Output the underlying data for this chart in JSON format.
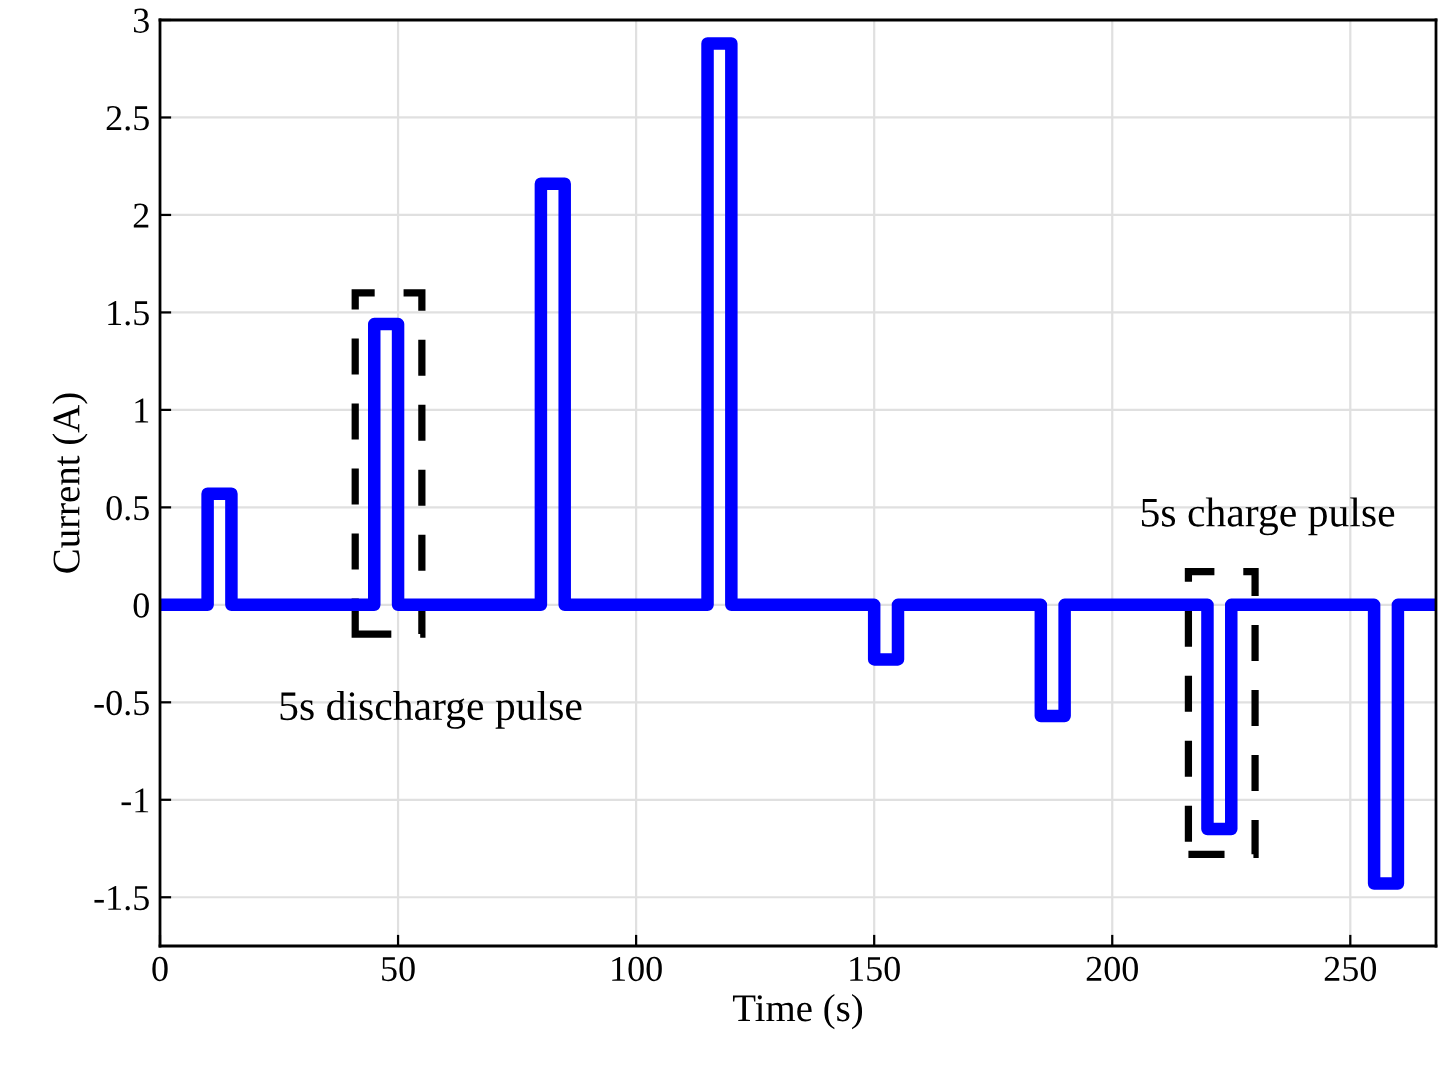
{
  "chart_data": {
    "type": "step",
    "xlabel": "Time (s)",
    "ylabel": "Current (A)",
    "x": [
      0,
      10,
      15,
      45,
      50,
      80,
      85,
      115,
      120,
      150,
      155,
      185,
      190,
      220,
      225,
      255,
      260,
      268
    ],
    "series": [
      {
        "color": "#0000ff",
        "values": [
          0,
          0.57,
          0,
          1.44,
          0,
          2.16,
          0,
          2.88,
          0,
          -0.28,
          0,
          -0.57,
          0,
          -1.15,
          0,
          -1.43,
          0,
          0
        ]
      }
    ],
    "xlim": [
      0,
      268
    ],
    "xticks": [
      0,
      50,
      100,
      150,
      200,
      250
    ],
    "ylim": [
      -1.75,
      3
    ],
    "yticks": [
      -1.5,
      -1,
      -0.5,
      0,
      0.5,
      1,
      1.5,
      2,
      2.5,
      3
    ],
    "grid": true,
    "annotations": [
      "5s discharge pulse",
      "5s charge pulse"
    ]
  }
}
